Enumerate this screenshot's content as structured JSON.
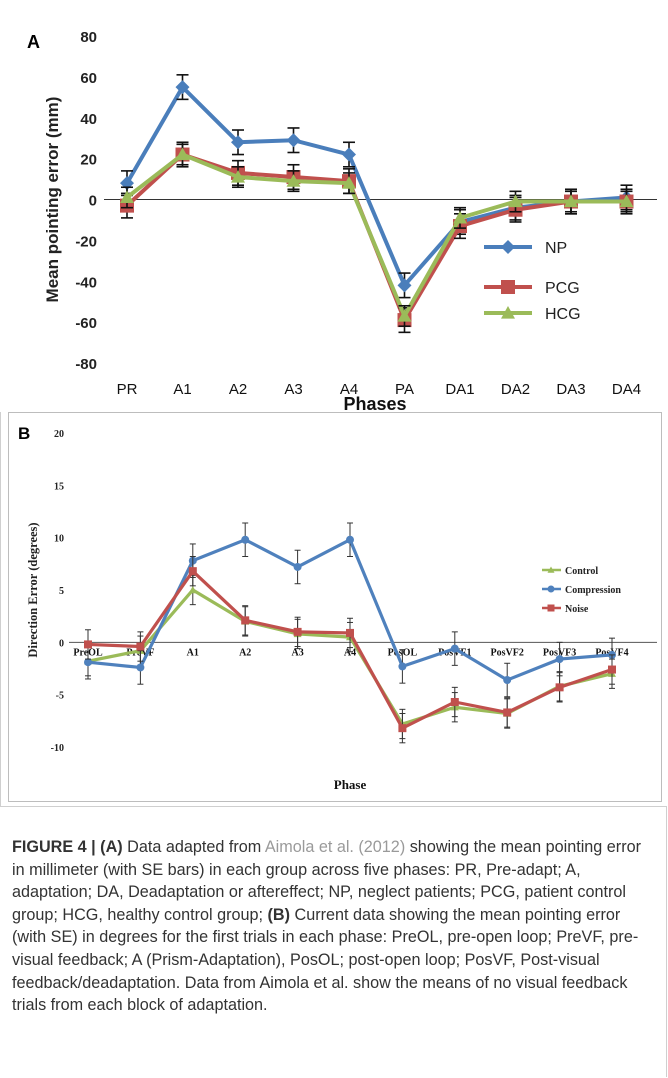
{
  "chart_data": [
    {
      "type": "line",
      "panel_label": "A",
      "title": "",
      "xlabel": "Phases",
      "ylabel": "Mean pointing error (mm)",
      "ylim": [
        -80,
        80
      ],
      "yticks": [
        "80",
        "60",
        "40",
        "20",
        "0",
        "-20",
        "-40",
        "-60",
        "-80"
      ],
      "categories": [
        "PR",
        "A1",
        "A2",
        "A3",
        "A4",
        "PA",
        "DA1",
        "DA2",
        "DA3",
        "DA4"
      ],
      "legend_position": "right",
      "series": [
        {
          "name": "NP",
          "color": "#4a7ebb",
          "marker": "diamond",
          "values": [
            8,
            55,
            28,
            29,
            22,
            -42,
            -11,
            -4,
            -1,
            1
          ],
          "err": [
            6,
            6,
            6,
            6,
            6,
            6,
            6,
            6,
            6,
            6
          ]
        },
        {
          "name": "PCG",
          "color": "#c0504d",
          "marker": "square",
          "values": [
            -3,
            22,
            13,
            11,
            9,
            -59,
            -13,
            -5,
            -1,
            -1
          ],
          "err": [
            6,
            6,
            6,
            6,
            6,
            6,
            6,
            6,
            6,
            6
          ]
        },
        {
          "name": "HCG",
          "color": "#9bbb59",
          "marker": "triangle",
          "values": [
            1,
            22,
            11,
            9,
            8,
            -57,
            -9,
            -1,
            -1,
            -1
          ],
          "err": [
            5,
            5,
            5,
            5,
            5,
            5,
            5,
            5,
            5,
            5
          ]
        }
      ]
    },
    {
      "type": "line",
      "panel_label": "B",
      "title": "",
      "xlabel": "Phase",
      "ylabel": "Direction Error (degrees)",
      "ylim": [
        -10,
        20
      ],
      "yticks": [
        "20",
        "15",
        "10",
        "5",
        "0",
        "-5",
        "-10"
      ],
      "categories": [
        "PreOL",
        "PreVF",
        "A1",
        "A2",
        "A3",
        "A4",
        "PosOL",
        "PosVF1",
        "PosVF2",
        "PosVF3",
        "PosVF4"
      ],
      "legend_position": "right",
      "series": [
        {
          "name": "Control",
          "color": "#9bbb59",
          "marker": "triangle",
          "values": [
            -1.8,
            -0.8,
            5.0,
            2.0,
            0.8,
            0.5,
            -7.8,
            -6.2,
            -6.8,
            -4.2,
            -3.0
          ],
          "err": [
            1.4,
            1.4,
            1.4,
            1.4,
            1.4,
            1.4,
            1.4,
            1.4,
            1.4,
            1.4,
            1.4
          ]
        },
        {
          "name": "Compression",
          "color": "#4f81bd",
          "marker": "circle",
          "values": [
            -1.9,
            -2.4,
            7.8,
            9.8,
            7.2,
            9.8,
            -2.3,
            -0.6,
            -3.6,
            -1.6,
            -1.2
          ],
          "err": [
            1.6,
            1.6,
            1.6,
            1.6,
            1.6,
            1.6,
            1.6,
            1.6,
            1.6,
            1.6,
            1.6
          ]
        },
        {
          "name": "Noise",
          "color": "#c0504d",
          "marker": "square",
          "values": [
            -0.2,
            -0.4,
            6.8,
            2.1,
            1.0,
            0.9,
            -8.2,
            -5.7,
            -6.7,
            -4.3,
            -2.6
          ],
          "err": [
            1.4,
            1.4,
            1.4,
            1.4,
            1.4,
            1.4,
            1.4,
            1.4,
            1.4,
            1.4,
            1.4
          ]
        }
      ]
    }
  ],
  "caption": {
    "figure_label": "FIGURE 4 | (A)",
    "part1": " Data adapted from ",
    "ref": "Aimola et al. (2012)",
    "part2": " showing the mean pointing error in millimeter (with SE bars) in each group across five phases: PR, Pre-adapt; A, adaptation; DA, Deadaptation or aftereffect; NP, neglect patients; PCG, patient control group; HCG, healthy control group; ",
    "b_label": "(B)",
    "part3": " Current data showing the mean pointing error (with SE) in degrees for the first trials in each phase: PreOL, pre-open loop; PreVF, pre-visual feedback; A (Prism-Adaptation), PosOL; post-open loop; PosVF, Post-visual feedback/deadaptation. Data from Aimola et al. show the means of no visual feedback trials from each block of adaptation."
  }
}
